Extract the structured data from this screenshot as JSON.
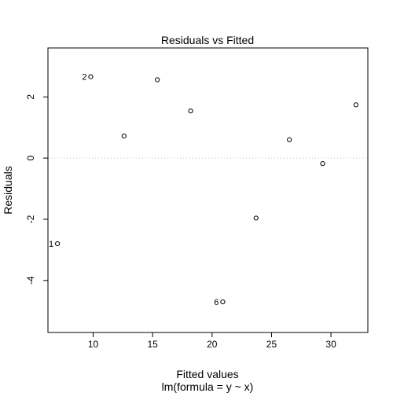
{
  "chart_data": {
    "type": "scatter",
    "title": "Residuals vs Fitted",
    "xlabel": "Fitted values",
    "xsublabel": "lm(formula = y ~ x)",
    "ylabel": "Residuals",
    "xlim": [
      6.2,
      33.1
    ],
    "ylim": [
      -5.7,
      3.6
    ],
    "x_ticks": [
      10,
      15,
      20,
      25,
      30
    ],
    "x_tick_labels": [
      "10",
      "15",
      "20",
      "25",
      "30"
    ],
    "y_ticks": [
      -4,
      -2,
      0,
      2
    ],
    "y_tick_labels": [
      "-4",
      "-2",
      "0",
      "2"
    ],
    "grid": false,
    "reference_line": {
      "y": 0,
      "style": "dotted",
      "color": "#c0c0c0"
    },
    "x": [
      7.0,
      9.8,
      12.6,
      15.4,
      18.2,
      20.9,
      23.7,
      26.5,
      29.3,
      32.1
    ],
    "y": [
      -2.8,
      2.66,
      0.72,
      2.56,
      1.54,
      -4.7,
      -1.96,
      0.6,
      -0.18,
      1.74
    ],
    "point_labels": [
      {
        "index": 0,
        "text": "1"
      },
      {
        "index": 1,
        "text": "2"
      },
      {
        "index": 5,
        "text": "6"
      }
    ]
  }
}
